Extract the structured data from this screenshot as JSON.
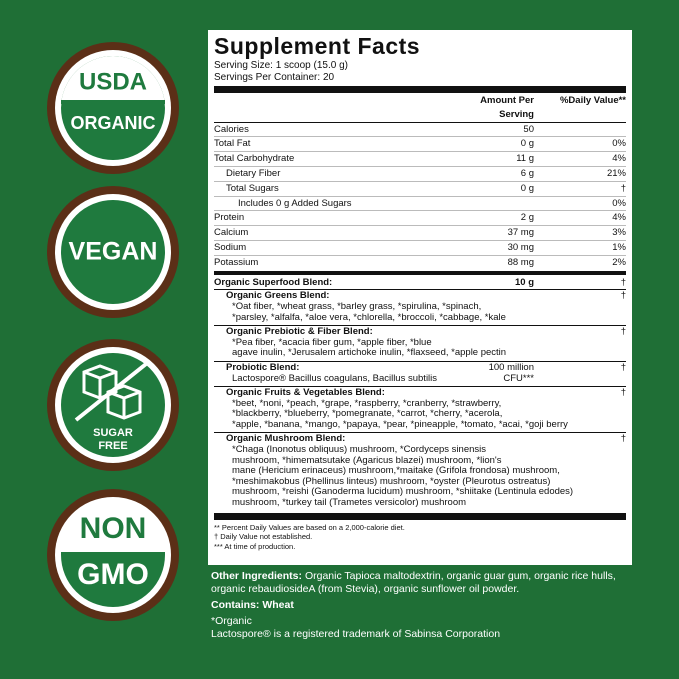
{
  "badges": [
    {
      "lines": [
        "USDA",
        "ORGANIC"
      ]
    },
    {
      "lines": [
        "VEGAN"
      ]
    },
    {
      "lines": [
        "SUGAR",
        "FREE"
      ]
    },
    {
      "lines": [
        "NON",
        "GMO"
      ]
    }
  ],
  "facts": {
    "title": "Supplement Facts",
    "serving_size": "Serving Size: 1 scoop (15.0 g)",
    "servings": "Servings Per Container: 20",
    "header": {
      "amount": "Amount Per Serving",
      "dv": "%Daily Value**"
    },
    "nutrients": [
      {
        "name": "Calories",
        "amount": "50"
      },
      {
        "name": "Total Fat",
        "amount": "0 g",
        "dv": "0%"
      },
      {
        "name": "Total Carbohydrate",
        "amount": "11 g",
        "dv": "4%",
        "sub": [
          {
            "name": "Dietary Fiber",
            "amount": "6 g",
            "dv": "21%"
          },
          {
            "name": "Total Sugars",
            "amount": "0 g",
            "dv": "†",
            "sub": [
              {
                "name": "Includes 0 g Added Sugars",
                "dv": "0%"
              }
            ]
          }
        ]
      },
      {
        "name": "Protein",
        "amount": "2 g",
        "dv": "4%"
      },
      {
        "name": "Calcium",
        "amount": "37 mg",
        "dv": "3%"
      },
      {
        "name": "Sodium",
        "amount": "30 mg",
        "dv": "1%"
      },
      {
        "name": "Potassium",
        "amount": "88 mg",
        "dv": "2%"
      }
    ],
    "blend": {
      "name": "Organic Superfood Blend:",
      "amount": "10 g",
      "dv": "†"
    },
    "sub_blends": [
      {
        "name": "Organic Greens Blend:",
        "dv": "†",
        "lines": [
          "*Oat fiber, *wheat grass, *barley grass, *spirulina, *spinach,",
          "*parsley, *alfalfa, *aloe vera, *chlorella, *broccoli, *cabbage, *kale"
        ]
      },
      {
        "name": "Organic Prebiotic & Fiber Blend:",
        "dv": "†",
        "lines": [
          "*Pea fiber, *acacia fiber gum, *apple fiber, *blue",
          "agave inulin, *Jerusalem artichoke inulin, *flaxseed, *apple pectin"
        ]
      },
      {
        "name": "Probiotic Blend:",
        "amount": [
          "100 million",
          "CFU***"
        ],
        "dv": "†",
        "lines": [
          "Lactospore® Bacillus coagulans, Bacillus subtilis"
        ]
      },
      {
        "name": "Organic Fruits & Vegetables Blend:",
        "dv": "†",
        "lines": [
          "*beet, *noni, *peach, *grape, *raspberry, *cranberry, *strawberry,",
          "*blackberry, *blueberry, *pomegranate, *carrot, *cherry, *acerola,",
          "*apple, *banana, *mango, *papaya, *pear, *pineapple, *tomato, *acai, *goji berry"
        ]
      },
      {
        "name": "Organic Mushroom Blend:",
        "dv": "†",
        "lines": [
          "*Chaga (Inonotus obliquus) mushroom, *Cordyceps sinensis",
          "mushroom, *himematsutake (Agaricus blazei) mushroom, *lion's",
          "mane (Hericium erinaceus) mushroom,*maitake (Grifola frondosa) mushroom,",
          "*meshimakobus (Phellinus linteus) mushroom, *oyster (Pleurotus ostreatus)",
          "mushroom, *reishi (Ganoderma lucidum) mushroom, *shiitake (Lentinula edodes)",
          "mushroom, *turkey tail (Trametes versicolor) mushroom"
        ]
      }
    ],
    "footnotes": [
      "** Percent Daily Values are based on a 2,000-calorie diet.",
      "† Daily Value not established.",
      "*** At time of production."
    ]
  },
  "other": {
    "label": "Other Ingredients:",
    "text": "Organic Tapioca maltodextrin, organic guar gum, organic rice hulls, organic rebaudiosideA (from Stevia), organic sunflower oil powder.",
    "contains": "Contains: Wheat",
    "organic_note": "*Organic",
    "trademark": "Lactospore® is a registered trademark of Sabinsa Corporation"
  }
}
